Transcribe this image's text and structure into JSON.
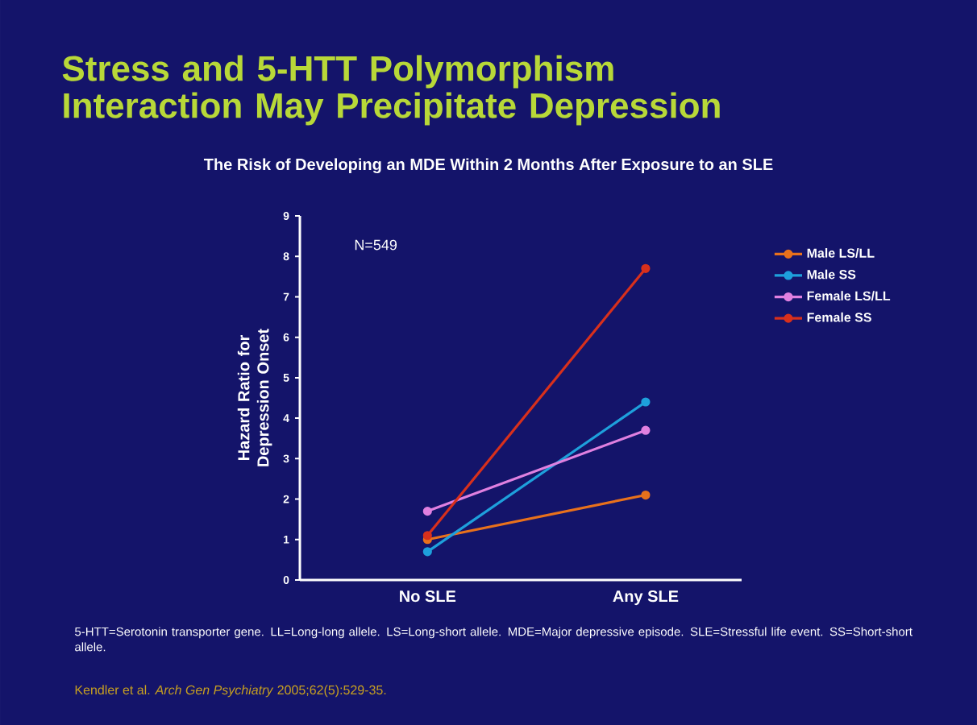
{
  "chart_data": {
    "type": "line",
    "title": "Stress and 5-HTT Polymorphism Interaction May Precipitate Depression",
    "subtitle": "The Risk of Developing an MDE Within 2 Months After Exposure to an SLE",
    "ylabel": "Hazard Ratio for Depression Onset",
    "categories": [
      "No SLE",
      "Any SLE"
    ],
    "series": [
      {
        "name": "Male LS/LL",
        "color": "#e8711c",
        "values": [
          1.0,
          2.1
        ]
      },
      {
        "name": "Male SS",
        "color": "#1ea0dc",
        "values": [
          0.7,
          4.4
        ]
      },
      {
        "name": "Female LS/LL",
        "color": "#e080e0",
        "values": [
          1.7,
          3.7
        ]
      },
      {
        "name": "Female SS",
        "color": "#d8301c",
        "values": [
          1.1,
          7.7
        ]
      }
    ],
    "ylim": [
      0,
      9
    ],
    "yticks": [
      0,
      1,
      2,
      3,
      4,
      5,
      6,
      7,
      8,
      9
    ],
    "grid": false,
    "legend": "right",
    "marker": "circle",
    "line_style": "solid",
    "annotations": [
      "N=549",
      "5-HTT=Serotonin transporter gene. LL=Long-long allele. LS=Long-short allele. MDE=Major depressive episode. SLE=Stressful life event. SS=Short-short allele.",
      "Kendler et al. *Arch Gen Psychiatry* 2005;62(5):529-35."
    ]
  }
}
